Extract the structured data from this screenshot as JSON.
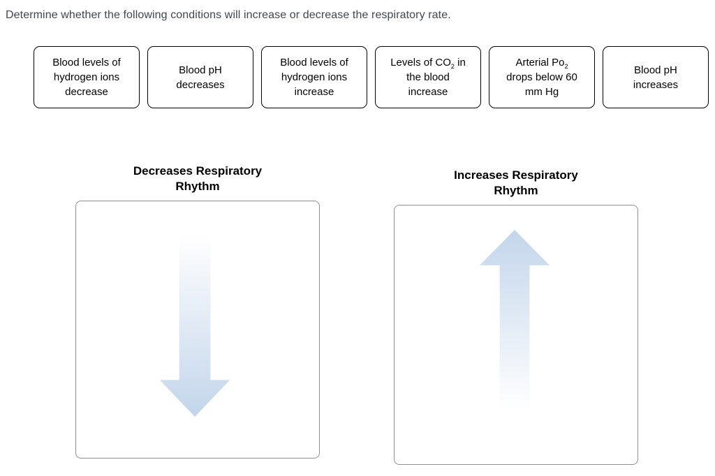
{
  "prompt": "Determine whether the following conditions will increase or decrease the respiratory rate.",
  "colors": {
    "background": "#ffffff",
    "prompt_text": "#40474c",
    "chip_border": "#000000",
    "chip_text": "#000000",
    "zone_border": "#8f8f8f",
    "zone_title": "#000000",
    "arrow_blue": "#c4d6eb",
    "arrow_fade": "#ffffff"
  },
  "chips": [
    {
      "id": "blood-hydrogen-ions-decrease",
      "lines": [
        [
          {
            "t": "Blood levels of"
          }
        ],
        [
          {
            "t": "hydrogen ions"
          }
        ],
        [
          {
            "t": "decrease"
          }
        ]
      ]
    },
    {
      "id": "blood-ph-decreases",
      "lines": [
        [
          {
            "t": "Blood pH"
          }
        ],
        [
          {
            "t": "decreases"
          }
        ]
      ]
    },
    {
      "id": "blood-hydrogen-ions-increase",
      "lines": [
        [
          {
            "t": "Blood levels of"
          }
        ],
        [
          {
            "t": "hydrogen ions"
          }
        ],
        [
          {
            "t": "increase"
          }
        ]
      ]
    },
    {
      "id": "co2-in-blood-increase",
      "lines": [
        [
          {
            "t": "Levels of CO"
          },
          {
            "t": "2",
            "sub": true
          },
          {
            "t": " in"
          }
        ],
        [
          {
            "t": "the blood"
          }
        ],
        [
          {
            "t": "increase"
          }
        ]
      ]
    },
    {
      "id": "arterial-po2-drops-below-60",
      "lines": [
        [
          {
            "t": "Arterial Po"
          },
          {
            "t": "2",
            "sub": true
          }
        ],
        [
          {
            "t": "drops below 60"
          }
        ],
        [
          {
            "t": "mm Hg"
          }
        ]
      ]
    },
    {
      "id": "blood-ph-increases",
      "lines": [
        [
          {
            "t": "Blood pH"
          }
        ],
        [
          {
            "t": "increases"
          }
        ]
      ]
    }
  ],
  "zones": [
    {
      "id": "decreases-respiratory-rhythm",
      "title_lines": [
        "Decreases Respiratory",
        "Rhythm"
      ],
      "arrow": "down"
    },
    {
      "id": "increases-respiratory-rhythm",
      "title_lines": [
        "Increases Respiratory",
        "Rhythm"
      ],
      "arrow": "up"
    }
  ]
}
